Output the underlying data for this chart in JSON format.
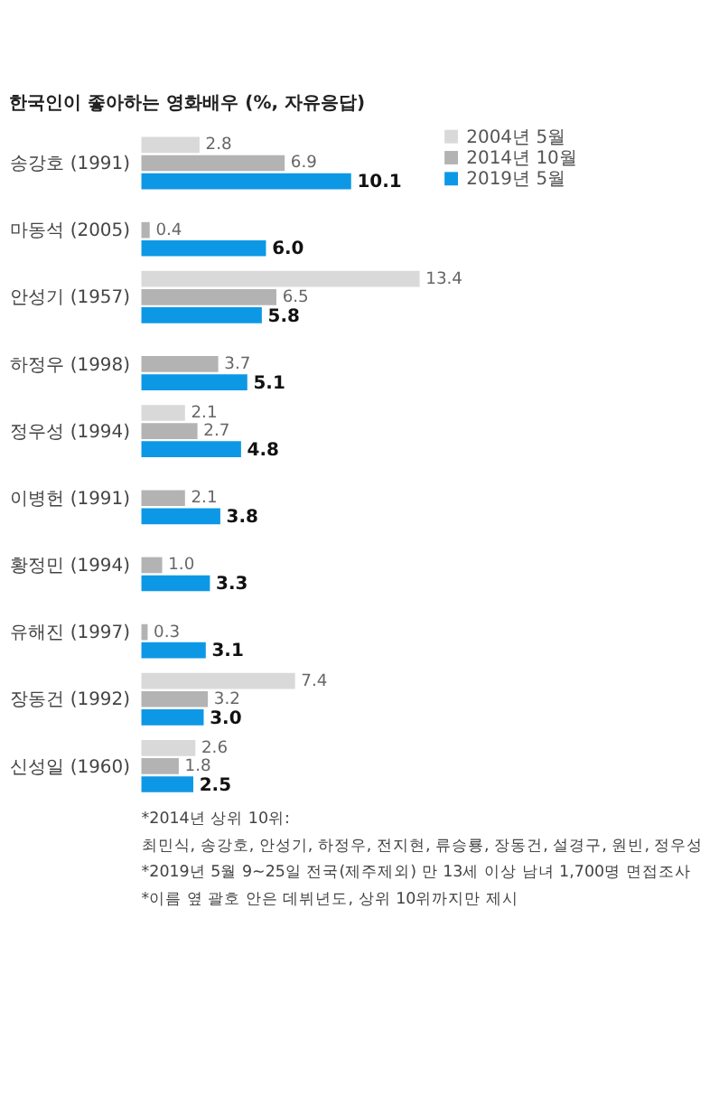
{
  "chart_data": {
    "type": "bar",
    "orientation": "horizontal",
    "title": "한국인이 좋아하는 영화배우 (%, 자유응답)",
    "categories": [
      "송강호 (1991)",
      "마동석 (2005)",
      "안성기 (1957)",
      "하정우 (1998)",
      "정우성 (1994)",
      "이병헌 (1991)",
      "황정민 (1994)",
      "유해진 (1997)",
      "장동건 (1992)",
      "신성일 (1960)"
    ],
    "series": [
      {
        "name": "2004년 5월",
        "color": "#d9d9d9",
        "values": [
          2.8,
          null,
          13.4,
          null,
          2.1,
          null,
          null,
          null,
          7.4,
          2.6
        ],
        "value_labels": [
          "2.8",
          null,
          "13.4",
          null,
          "2.1",
          null,
          null,
          null,
          "7.4",
          "2.6"
        ]
      },
      {
        "name": "2014년 10월",
        "color": "#b3b3b3",
        "values": [
          6.9,
          0.4,
          6.5,
          3.7,
          2.7,
          2.1,
          1.0,
          0.3,
          3.2,
          1.8
        ],
        "value_labels": [
          "6.9",
          "0.4",
          "6.5",
          "3.7",
          "2.7",
          "2.1",
          "1.0",
          "0.3",
          "3.2",
          "1.8"
        ]
      },
      {
        "name": "2019년 5월",
        "color": "#0d98e6",
        "values": [
          10.1,
          6.0,
          5.8,
          5.1,
          4.8,
          3.8,
          3.3,
          3.1,
          3.0,
          2.5
        ],
        "value_labels": [
          "10.1",
          "6.0",
          "5.8",
          "5.1",
          "4.8",
          "3.8",
          "3.3",
          "3.1",
          "3.0",
          "2.5"
        ]
      }
    ],
    "legend": "top right",
    "tick_labels": "y",
    "annotations": [
      "*2014년 상위 10위:",
      " 최민식, 송강호, 안성기, 하정우, 전지현, 류승룡, 장동건, 설경구, 원빈, 정우성",
      "*2019년 5월 9~25일 전국(제주제외) 만 13세 이상 남녀 1,700명 면접조사",
      "*이름 옆 괄호 안은 데뷔년도, 상위 10위까지만 제시"
    ]
  }
}
